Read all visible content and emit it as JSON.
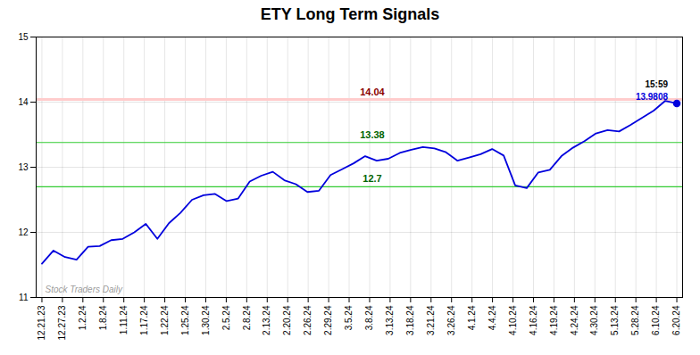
{
  "chart_data": {
    "type": "line",
    "title": "ETY Long Term Signals",
    "x": [
      0,
      1,
      2,
      3,
      4,
      5,
      6,
      7,
      8,
      9,
      10,
      11,
      12,
      13,
      14,
      15,
      16,
      17,
      18,
      19,
      20,
      21,
      22,
      23,
      24,
      25,
      26,
      27,
      28,
      29,
      30,
      31,
      32,
      33,
      34,
      35,
      36,
      37,
      38,
      39,
      40,
      41,
      42,
      43,
      44,
      45,
      46,
      47,
      48,
      49,
      50,
      51,
      52,
      53,
      54,
      55
    ],
    "values": [
      11.52,
      11.72,
      11.62,
      11.58,
      11.78,
      11.79,
      11.88,
      11.9,
      12.0,
      12.13,
      11.9,
      12.14,
      12.3,
      12.5,
      12.57,
      12.59,
      12.48,
      12.52,
      12.78,
      12.87,
      12.93,
      12.8,
      12.74,
      12.62,
      12.64,
      12.88,
      12.97,
      13.06,
      13.17,
      13.1,
      13.13,
      13.22,
      13.27,
      13.31,
      13.29,
      13.23,
      13.1,
      13.15,
      13.2,
      13.28,
      13.18,
      12.72,
      12.68,
      12.92,
      12.96,
      13.17,
      13.3,
      13.4,
      13.52,
      13.57,
      13.55,
      13.65,
      13.76,
      13.87,
      14.02,
      13.9808
    ],
    "color": "#0000dd",
    "xlim": [
      -0.5,
      55.5
    ],
    "xticks": [
      {
        "value": 0,
        "label": "12.21.23"
      },
      {
        "value": 1.7741935483870968,
        "label": "12.27.23"
      },
      {
        "value": 3.5483870967741935,
        "label": "1.2.24"
      },
      {
        "value": 5.32258064516129,
        "label": "1.8.24"
      },
      {
        "value": 7.096774193548387,
        "label": "1.11.24"
      },
      {
        "value": 8.870967741935484,
        "label": "1.17.24"
      },
      {
        "value": 10.64516129032258,
        "label": "1.22.24"
      },
      {
        "value": 12.419354838709678,
        "label": "1.25.24"
      },
      {
        "value": 14.193548387096774,
        "label": "1.30.24"
      },
      {
        "value": 15.96774193548387,
        "label": "2.5.24"
      },
      {
        "value": 17.741935483870968,
        "label": "2.8.24"
      },
      {
        "value": 19.516129032258064,
        "label": "2.13.24"
      },
      {
        "value": 21.29032258064516,
        "label": "2.20.24"
      },
      {
        "value": 23.06451612903226,
        "label": "2.26.24"
      },
      {
        "value": 24.838709677419356,
        "label": "2.29.24"
      },
      {
        "value": 26.612903225806452,
        "label": "3.5.24"
      },
      {
        "value": 28.387096774193548,
        "label": "3.8.24"
      },
      {
        "value": 30.161290322580644,
        "label": "3.13.24"
      },
      {
        "value": 31.93548387096774,
        "label": "3.18.24"
      },
      {
        "value": 33.70967741935484,
        "label": "3.21.24"
      },
      {
        "value": 35.483870967741936,
        "label": "3.26.24"
      },
      {
        "value": 37.25806451612903,
        "label": "4.1.24"
      },
      {
        "value": 39.03225806451613,
        "label": "4.4.24"
      },
      {
        "value": 40.806451612903224,
        "label": "4.10.24"
      },
      {
        "value": 42.58064516129032,
        "label": "4.16.24"
      },
      {
        "value": 44.354838709677416,
        "label": "4.19.24"
      },
      {
        "value": 46.12903225806452,
        "label": "4.24.24"
      },
      {
        "value": 47.903225806451616,
        "label": "4.30.24"
      },
      {
        "value": 49.67741935483871,
        "label": "5.13.24"
      },
      {
        "value": 51.45161290322581,
        "label": "5.28.24"
      },
      {
        "value": 53.225806451612904,
        "label": "6.10.24"
      },
      {
        "value": 55,
        "label": "6.20.24"
      }
    ],
    "ylim": [
      11,
      15
    ],
    "yticks": [
      11,
      12,
      13,
      14,
      15
    ],
    "grid": true,
    "reference_lines": [
      {
        "y": 14.04,
        "label": "14.04",
        "color": "#ffcccc",
        "label_color": "darkred",
        "line_style": "band"
      },
      {
        "y": 13.38,
        "label": "13.38",
        "color": "#33cc33",
        "label_color": "darkgreen",
        "line_style": "solid"
      },
      {
        "y": 12.7,
        "label": "12.7",
        "color": "#33cc33",
        "label_color": "darkgreen",
        "line_style": "solid"
      }
    ],
    "last_point": {
      "x": 55,
      "y": 13.9808,
      "label": "13.9808",
      "time_label": "15:59",
      "color": "#0000dd"
    },
    "watermark": "Stock Traders Daily"
  }
}
